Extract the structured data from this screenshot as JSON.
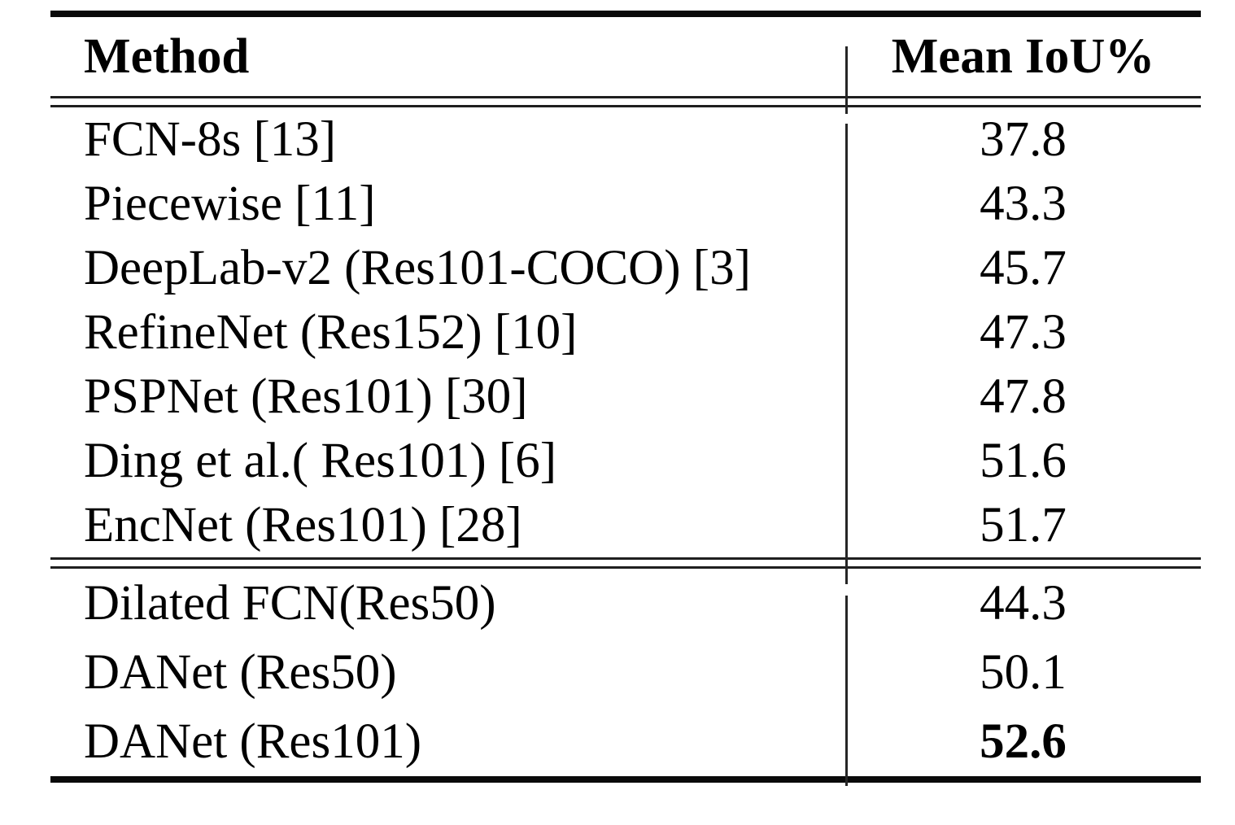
{
  "chart_data": {
    "type": "table",
    "title": "",
    "columns": [
      "Method",
      "Mean IoU%"
    ],
    "rows": [
      [
        "FCN-8s [13]",
        37.8
      ],
      [
        "Piecewise [11]",
        43.3
      ],
      [
        "DeepLab-v2 (Res101-COCO) [3]",
        45.7
      ],
      [
        "RefineNet (Res152) [10]",
        47.3
      ],
      [
        "PSPNet (Res101) [30]",
        47.8
      ],
      [
        "Ding et al.( Res101) [6]",
        51.6
      ],
      [
        "EncNet (Res101) [28]",
        51.7
      ],
      [
        "Dilated FCN(Res50)",
        44.3
      ],
      [
        "DANet (Res50)",
        50.1
      ],
      [
        "DANet (Res101)",
        52.6
      ]
    ],
    "best_value": 52.6,
    "section_break_after_row": 7
  },
  "table": {
    "headers": {
      "method": "Method",
      "metric": "Mean IoU%"
    },
    "section1": [
      {
        "method": "FCN-8s [13]",
        "value": "37.8"
      },
      {
        "method": "Piecewise [11]",
        "value": "43.3"
      },
      {
        "method": "DeepLab-v2 (Res101-COCO) [3]",
        "value": "45.7"
      },
      {
        "method": "RefineNet (Res152) [10]",
        "value": "47.3"
      },
      {
        "method": "PSPNet (Res101) [30]",
        "value": "47.8"
      },
      {
        "method": "Ding et al.( Res101) [6]",
        "value": "51.6"
      },
      {
        "method": "EncNet (Res101) [28]",
        "value": "51.7"
      }
    ],
    "section2": [
      {
        "method": "Dilated FCN(Res50)",
        "value": "44.3"
      },
      {
        "method": "DANet (Res50)",
        "value": "50.1"
      },
      {
        "method": "DANet (Res101)",
        "value": "52.6"
      }
    ]
  },
  "colors": {
    "background": "#ffffff",
    "text": "#000000",
    "rule_thick": "#0a0a0a",
    "rule_thin": "#1f1f1f"
  }
}
